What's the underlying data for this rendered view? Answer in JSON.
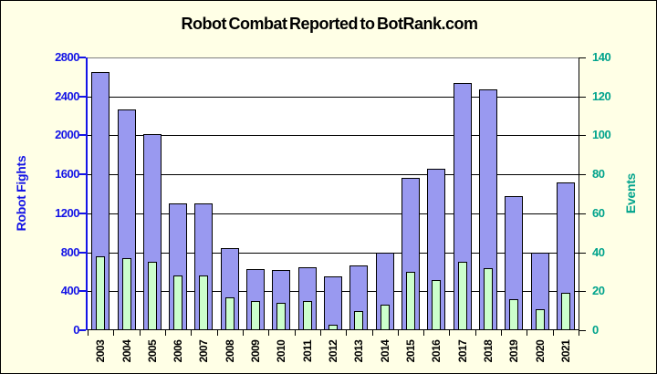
{
  "title": "Robot Combat Reported to BotRank.com",
  "legend": {
    "fights_label": "Robot Fights",
    "events_label": "Robot Events"
  },
  "colors": {
    "background": "#FFFFE6",
    "plot_background": "#FFFFFF",
    "fights_bar": "#9999F0",
    "events_bar": "#CCFFCC",
    "bar_border": "#000000",
    "gridline": "#000000",
    "left_axis": "#1414E6",
    "right_axis": "#00A38C",
    "plot_top_border": "#808080",
    "title_text": "#000000",
    "year_text": "#000000"
  },
  "chart_data": {
    "type": "bar",
    "title": "Robot Combat Reported to BotRank.com",
    "categories": [
      "2003",
      "2004",
      "2005",
      "2006",
      "2007",
      "2008",
      "2009",
      "2010",
      "2011",
      "2012",
      "2013",
      "2014",
      "2015",
      "2016",
      "2017",
      "2018",
      "2019",
      "2020",
      "2021"
    ],
    "series": [
      {
        "name": "Robot Fights",
        "axis": "left",
        "values": [
          2650,
          2270,
          2010,
          1300,
          1300,
          840,
          630,
          620,
          650,
          550,
          670,
          800,
          1560,
          1660,
          2540,
          2470,
          1380,
          800,
          1520
        ]
      },
      {
        "name": "Robot Events",
        "axis": "right",
        "values": [
          38,
          37,
          35,
          28,
          28,
          17,
          15,
          14,
          15,
          3,
          10,
          13,
          30,
          26,
          35,
          32,
          16,
          11,
          19
        ]
      }
    ],
    "left_axis": {
      "label": "Robot Fights",
      "min": 0,
      "max": 2800,
      "tick_step": 400,
      "tick_labels": [
        "0",
        "400",
        "800",
        "1200",
        "1600",
        "2000",
        "2400",
        "2800"
      ]
    },
    "right_axis": {
      "label": "Events",
      "min": 0,
      "max": 140,
      "tick_step": 20,
      "tick_labels": [
        "0",
        "20",
        "40",
        "60",
        "80",
        "100",
        "120",
        "140"
      ]
    },
    "grid": true,
    "legend_position": "inside-top-center"
  }
}
